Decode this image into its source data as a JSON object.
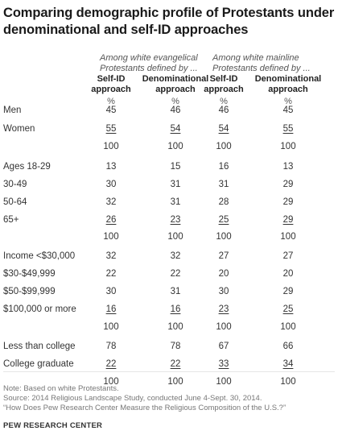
{
  "title": "Comparing demographic profile of Protestants under denominational and self-ID approaches",
  "groups": [
    {
      "label": "Among white evangelical Protestants defined by ..."
    },
    {
      "label": "Among white mainline Protestants defined by ..."
    }
  ],
  "columns": [
    {
      "label": "Self-ID approach",
      "unit": "%"
    },
    {
      "label": "Denominational approach",
      "unit": "%"
    },
    {
      "label": "Self-ID approach",
      "unit": "%"
    },
    {
      "label": "Denominational approach",
      "unit": "%"
    }
  ],
  "rows": [
    {
      "label": "Men",
      "values": [
        "45",
        "46",
        "46",
        "45"
      ]
    },
    {
      "label": "Women",
      "values": [
        "55",
        "54",
        "54",
        "55"
      ],
      "underline": true
    },
    {
      "label": "",
      "values": [
        "100",
        "100",
        "100",
        "100"
      ]
    },
    {
      "label": "Ages 18-29",
      "values": [
        "13",
        "15",
        "16",
        "13"
      ]
    },
    {
      "label": "30-49",
      "values": [
        "30",
        "31",
        "31",
        "29"
      ]
    },
    {
      "label": "50-64",
      "values": [
        "32",
        "31",
        "28",
        "29"
      ]
    },
    {
      "label": "65+",
      "values": [
        "26",
        "23",
        "25",
        "29"
      ],
      "underline": true
    },
    {
      "label": "",
      "values": [
        "100",
        "100",
        "100",
        "100"
      ]
    },
    {
      "label": "Income <$30,000",
      "values": [
        "32",
        "32",
        "27",
        "27"
      ]
    },
    {
      "label": "$30-$49,999",
      "values": [
        "22",
        "22",
        "20",
        "20"
      ]
    },
    {
      "label": "$50-$99,999",
      "values": [
        "30",
        "31",
        "30",
        "29"
      ]
    },
    {
      "label": "$100,000 or more",
      "values": [
        "16",
        "16",
        "23",
        "25"
      ],
      "underline": true
    },
    {
      "label": "",
      "values": [
        "100",
        "100",
        "100",
        "100"
      ]
    },
    {
      "label": "Less than college",
      "values": [
        "78",
        "78",
        "67",
        "66"
      ]
    },
    {
      "label": "College graduate",
      "values": [
        "22",
        "22",
        "33",
        "34"
      ],
      "underline": true
    },
    {
      "label": "",
      "values": [
        "100",
        "100",
        "100",
        "100"
      ]
    }
  ],
  "notes": [
    "Note: Based on white Protestants.",
    "Source: 2014 Religious Landscape Study, conducted June 4-Sept. 30, 2014.",
    "“How Does Pew Research Center Measure the Religious Composition of the U.S.?”"
  ],
  "brand": "PEW RESEARCH CENTER"
}
